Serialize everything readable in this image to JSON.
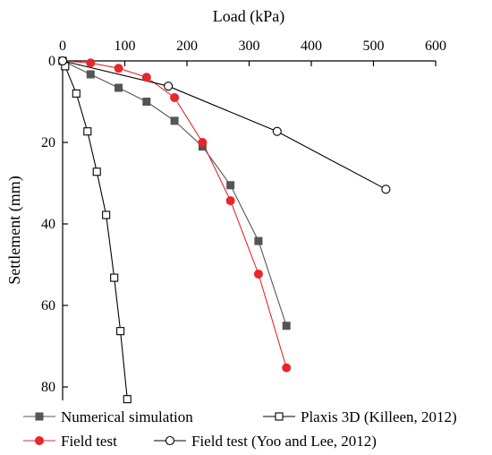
{
  "chart_data": {
    "type": "line",
    "xlabel": "Load (kPa)",
    "ylabel": "Settlement (mm)",
    "xlim": [
      0,
      600
    ],
    "ylim": [
      0,
      80
    ],
    "y_inverted": true,
    "x_axis_position": "top",
    "xticks": [
      0,
      100,
      200,
      300,
      400,
      500,
      600
    ],
    "yticks": [
      0,
      20,
      40,
      60,
      80
    ],
    "xtick_labels": [
      "0",
      "100",
      "200",
      "300",
      "400",
      "500",
      "600"
    ],
    "ytick_labels": [
      "0",
      "20",
      "40",
      "60",
      "80"
    ],
    "grid": false,
    "legend_position": "bottom",
    "series": [
      {
        "name": "Numerical simulation",
        "color": "#555555",
        "line_color": "#555555",
        "marker": "filled-square",
        "points": [
          [
            0,
            0
          ],
          [
            45,
            3.3
          ],
          [
            90,
            6.6
          ],
          [
            135,
            10
          ],
          [
            180,
            14.7
          ],
          [
            225,
            21
          ],
          [
            270,
            30.5
          ],
          [
            315,
            44.2
          ],
          [
            360,
            65
          ]
        ]
      },
      {
        "name": "Plaxis 3D (Killeen, 2012)",
        "color": "#000000",
        "line_color": "#000000",
        "marker": "open-square",
        "points": [
          [
            0,
            0
          ],
          [
            4,
            1.3
          ],
          [
            22,
            8
          ],
          [
            40,
            17.3
          ],
          [
            55,
            27.2
          ],
          [
            70,
            37.8
          ],
          [
            83,
            53.2
          ],
          [
            93,
            66.3
          ],
          [
            104,
            83
          ]
        ]
      },
      {
        "name": "Field test",
        "color": "#e8262c",
        "line_color": "#e8262c",
        "marker": "filled-circle",
        "points": [
          [
            0,
            0
          ],
          [
            45,
            0.5
          ],
          [
            90,
            1.8
          ],
          [
            135,
            4
          ],
          [
            180,
            9
          ],
          [
            225,
            20
          ],
          [
            270,
            34.3
          ],
          [
            315,
            52.3
          ],
          [
            360,
            75.3
          ]
        ]
      },
      {
        "name": "Field test (Yoo and Lee, 2012)",
        "color": "#000000",
        "line_color": "#000000",
        "marker": "open-circle",
        "points": [
          [
            0,
            0
          ],
          [
            170,
            6.2
          ],
          [
            345,
            17.3
          ],
          [
            520,
            31.5
          ]
        ]
      }
    ]
  }
}
